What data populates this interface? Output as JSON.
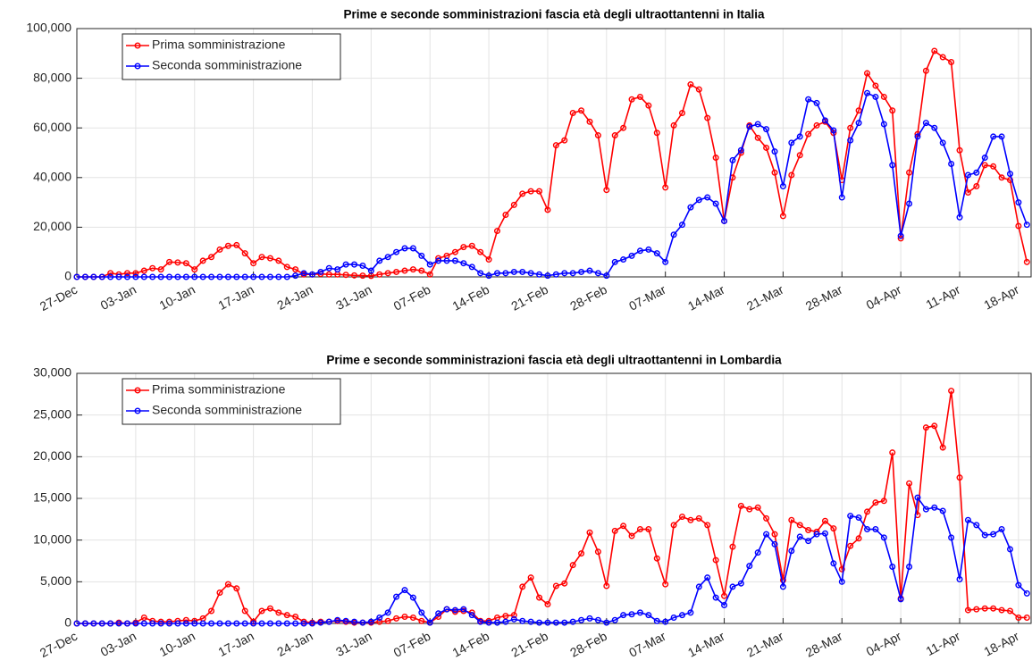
{
  "chart_data": [
    {
      "type": "line",
      "title": "Prime e seconde somministrazioni fascia età degli ultraottantenni in Italia",
      "categories": [
        "27-Dec",
        null,
        null,
        null,
        null,
        null,
        null,
        "03-Jan",
        null,
        null,
        null,
        null,
        null,
        null,
        "10-Jan",
        null,
        null,
        null,
        null,
        null,
        null,
        "17-Jan",
        null,
        null,
        null,
        null,
        null,
        null,
        "24-Jan",
        null,
        null,
        null,
        null,
        null,
        null,
        "31-Jan",
        null,
        null,
        null,
        null,
        null,
        null,
        "07-Feb",
        null,
        null,
        null,
        null,
        null,
        null,
        "14-Feb",
        null,
        null,
        null,
        null,
        null,
        null,
        "21-Feb",
        null,
        null,
        null,
        null,
        null,
        null,
        "28-Feb",
        null,
        null,
        null,
        null,
        null,
        null,
        "07-Mar",
        null,
        null,
        null,
        null,
        null,
        null,
        "14-Mar",
        null,
        null,
        null,
        null,
        null,
        null,
        "21-Mar",
        null,
        null,
        null,
        null,
        null,
        null,
        "28-Mar",
        null,
        null,
        null,
        null,
        null,
        null,
        "04-Apr",
        null,
        null,
        null,
        null,
        null,
        null,
        "11-Apr",
        null,
        null,
        null,
        null,
        null,
        null,
        "18-Apr",
        null
      ],
      "series": [
        {
          "name": "Prima somministrazione",
          "color": "#ff0000",
          "values": [
            0,
            0,
            0,
            0,
            1500,
            1000,
            1500,
            1500,
            2500,
            3500,
            3000,
            6000,
            5800,
            5500,
            3000,
            6500,
            8000,
            11000,
            12500,
            12800,
            9500,
            5500,
            8000,
            7500,
            6500,
            4000,
            3000,
            1000,
            1000,
            1200,
            1000,
            1000,
            800,
            600,
            500,
            400,
            1000,
            1500,
            2000,
            2500,
            3000,
            2500,
            1000,
            7500,
            8500,
            10000,
            12000,
            12500,
            10000,
            7000,
            18500,
            25000,
            29000,
            33500,
            34500,
            34500,
            27000,
            53000,
            55000,
            66000,
            67000,
            62500,
            57000,
            35000,
            57000,
            60000,
            71500,
            72500,
            69000,
            58000,
            36000,
            61000,
            66000,
            77500,
            75500,
            64000,
            48000,
            22500,
            40000,
            50000,
            61000,
            56000,
            52000,
            42000,
            24500,
            41000,
            49000,
            57500,
            61000,
            62500,
            58000,
            39000,
            60000,
            67000,
            82000,
            77000,
            72500,
            67000,
            15500,
            42000,
            57500,
            83000,
            91000,
            88500,
            86500,
            51000,
            34000,
            36500,
            45000,
            44500,
            40000,
            39000,
            20500,
            6000
          ]
        },
        {
          "name": "Seconda somministrazione",
          "color": "#0000ff",
          "values": [
            0,
            0,
            0,
            0,
            0,
            0,
            0,
            0,
            0,
            0,
            0,
            0,
            0,
            0,
            0,
            0,
            0,
            0,
            0,
            0,
            0,
            0,
            0,
            0,
            0,
            0,
            500,
            1500,
            1000,
            2000,
            3500,
            3000,
            5000,
            5000,
            4500,
            2500,
            6500,
            8000,
            10000,
            11500,
            11500,
            8500,
            5000,
            6500,
            6500,
            6500,
            5500,
            4000,
            1500,
            500,
            1500,
            1500,
            2000,
            2000,
            1500,
            1000,
            500,
            1000,
            1500,
            1500,
            2000,
            2500,
            1500,
            500,
            6000,
            7000,
            8500,
            10500,
            11000,
            9500,
            6000,
            17000,
            21000,
            28000,
            31000,
            32000,
            29500,
            22500,
            47000,
            51000,
            60500,
            61500,
            59500,
            50500,
            36500,
            54000,
            56500,
            71500,
            70000,
            63000,
            59000,
            32000,
            55000,
            62000,
            74000,
            72500,
            61500,
            45000,
            16500,
            29500,
            56500,
            62000,
            60000,
            54000,
            45500,
            24000,
            41000,
            42000,
            48000,
            56500,
            56500,
            41500,
            30000,
            21000
          ]
        }
      ],
      "ylim": [
        0,
        100000
      ],
      "yticks": [
        0,
        {
          "value": 20000,
          "label": "20,000"
        },
        {
          "value": 40000,
          "label": "40,000"
        },
        {
          "value": 60000,
          "label": "60,000"
        },
        {
          "value": 80000,
          "label": "80,000"
        },
        {
          "value": 100000,
          "label": "100,000"
        }
      ],
      "grid": true,
      "legend": "upper left"
    },
    {
      "type": "line",
      "title": "Prime e seconde somministrazioni fascia età degli ultraottantenni in Lombardia",
      "categories": [
        "27-Dec",
        null,
        null,
        null,
        null,
        null,
        null,
        "03-Jan",
        null,
        null,
        null,
        null,
        null,
        null,
        "10-Jan",
        null,
        null,
        null,
        null,
        null,
        null,
        "17-Jan",
        null,
        null,
        null,
        null,
        null,
        null,
        "24-Jan",
        null,
        null,
        null,
        null,
        null,
        null,
        "31-Jan",
        null,
        null,
        null,
        null,
        null,
        null,
        "07-Feb",
        null,
        null,
        null,
        null,
        null,
        null,
        "14-Feb",
        null,
        null,
        null,
        null,
        null,
        null,
        "21-Feb",
        null,
        null,
        null,
        null,
        null,
        null,
        "28-Feb",
        null,
        null,
        null,
        null,
        null,
        null,
        "07-Mar",
        null,
        null,
        null,
        null,
        null,
        null,
        "14-Mar",
        null,
        null,
        null,
        null,
        null,
        null,
        "21-Mar",
        null,
        null,
        null,
        null,
        null,
        null,
        "28-Mar",
        null,
        null,
        null,
        null,
        null,
        null,
        "04-Apr",
        null,
        null,
        null,
        null,
        null,
        null,
        "11-Apr",
        null,
        null,
        null,
        null,
        null,
        null,
        "18-Apr",
        null
      ],
      "series": [
        {
          "name": "Prima somministrazione",
          "color": "#ff0000",
          "values": [
            0,
            0,
            0,
            0,
            0,
            100,
            0,
            100,
            700,
            300,
            200,
            200,
            300,
            400,
            300,
            600,
            1500,
            3700,
            4700,
            4200,
            1500,
            200,
            1500,
            1800,
            1300,
            1000,
            800,
            200,
            100,
            200,
            200,
            300,
            200,
            100,
            100,
            100,
            200,
            300,
            600,
            800,
            700,
            300,
            100,
            800,
            1700,
            1400,
            1500,
            1300,
            300,
            300,
            700,
            900,
            1000,
            4400,
            5500,
            3100,
            2300,
            4500,
            4800,
            7000,
            8400,
            10900,
            8600,
            4500,
            11100,
            11700,
            10500,
            11300,
            11300,
            7800,
            4700,
            11800,
            12800,
            12400,
            12600,
            11800,
            7600,
            3300,
            9200,
            14100,
            13700,
            13900,
            12600,
            10700,
            5200,
            12400,
            11800,
            11200,
            11000,
            12300,
            11400,
            6500,
            9300,
            10200,
            13400,
            14500,
            14700,
            20500,
            3000,
            16800,
            13000,
            23500,
            23700,
            21100,
            27900,
            17500,
            1600,
            1700,
            1800,
            1800,
            1600,
            1500,
            700,
            700
          ]
        },
        {
          "name": "Seconda somministrazione",
          "color": "#0000ff",
          "values": [
            0,
            0,
            0,
            0,
            0,
            0,
            0,
            0,
            0,
            0,
            0,
            0,
            0,
            0,
            0,
            0,
            0,
            0,
            0,
            0,
            0,
            0,
            0,
            0,
            0,
            0,
            0,
            0,
            0,
            100,
            200,
            400,
            300,
            200,
            100,
            200,
            700,
            1300,
            3200,
            4000,
            3100,
            1300,
            100,
            1200,
            1700,
            1600,
            1700,
            1000,
            200,
            100,
            100,
            200,
            500,
            300,
            200,
            100,
            100,
            100,
            100,
            200,
            400,
            600,
            400,
            100,
            400,
            1000,
            1100,
            1300,
            1000,
            300,
            200,
            700,
            1000,
            1300,
            4400,
            5500,
            3100,
            2200,
            4400,
            4800,
            6900,
            8500,
            10700,
            9500,
            4400,
            8700,
            10400,
            9900,
            10700,
            10800,
            7200,
            5000,
            12900,
            12700,
            11300,
            11300,
            10300,
            6800,
            2900,
            6800,
            15100,
            13700,
            13900,
            13500,
            10300,
            5300,
            12400,
            11800,
            10600,
            10700,
            11300,
            8900,
            4600,
            3600
          ]
        }
      ],
      "ylim": [
        0,
        30000
      ],
      "yticks": [
        0,
        {
          "value": 5000,
          "label": "5,000"
        },
        {
          "value": 10000,
          "label": "10,000"
        },
        {
          "value": 15000,
          "label": "15,000"
        },
        {
          "value": 20000,
          "label": "20,000"
        },
        {
          "value": 25000,
          "label": "25,000"
        },
        {
          "value": 30000,
          "label": "30,000"
        }
      ],
      "grid": true,
      "legend": "upper left"
    }
  ]
}
